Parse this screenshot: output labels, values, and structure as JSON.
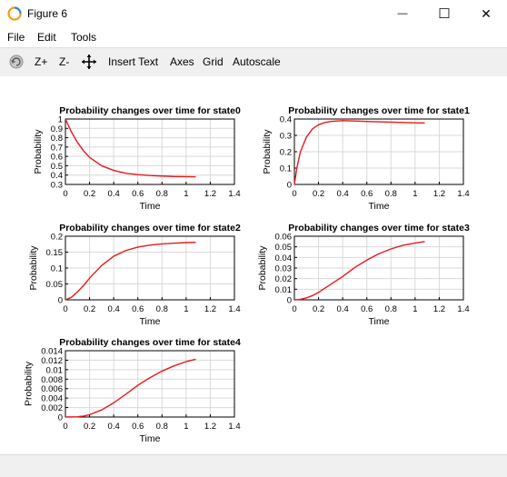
{
  "window": {
    "title": "Figure 6",
    "minimize_glyph": "—",
    "maximize_glyph": "☐",
    "close_glyph": "✕"
  },
  "menu": {
    "items": [
      "File",
      "Edit",
      "Tools"
    ]
  },
  "toolbar": {
    "zoom_in": "Z+",
    "zoom_out": "Z-",
    "insert_text": "Insert Text",
    "axes": "Axes",
    "grid": "Grid",
    "autoscale": "Autoscale"
  },
  "colors": {
    "line": "#e8191c",
    "grid": "#d9d9d9"
  },
  "chart_data": [
    {
      "type": "line",
      "title": "Probability changes over time for state0",
      "xlabel": "Time",
      "ylabel": "Probability",
      "xlim": [
        0,
        1.4
      ],
      "ylim": [
        0.3,
        1
      ],
      "xticks": [
        "0",
        "0.2",
        "0.4",
        "0.6",
        "0.8",
        "1",
        "1.2",
        "1.4"
      ],
      "yticks": [
        "0.3",
        "0.4",
        "0.5",
        "0.6",
        "0.7",
        "0.8",
        "0.9",
        "1"
      ],
      "x": [
        0,
        0.05,
        0.1,
        0.15,
        0.2,
        0.3,
        0.4,
        0.5,
        0.6,
        0.7,
        0.8,
        0.9,
        1.0,
        1.08
      ],
      "y": [
        1.0,
        0.86,
        0.75,
        0.66,
        0.59,
        0.5,
        0.45,
        0.42,
        0.405,
        0.395,
        0.39,
        0.385,
        0.383,
        0.382
      ]
    },
    {
      "type": "line",
      "title": "Probability changes over time for state1",
      "xlabel": "Time",
      "ylabel": "Probability",
      "xlim": [
        0,
        1.4
      ],
      "ylim": [
        0,
        0.4
      ],
      "xticks": [
        "0",
        "0.2",
        "0.4",
        "0.6",
        "0.8",
        "1",
        "1.2",
        "1.4"
      ],
      "yticks": [
        "0",
        "0.1",
        "0.2",
        "0.3",
        "0.4"
      ],
      "x": [
        0,
        0.02,
        0.05,
        0.1,
        0.15,
        0.2,
        0.25,
        0.3,
        0.4,
        0.5,
        0.6,
        0.7,
        0.8,
        0.9,
        1.0,
        1.08
      ],
      "y": [
        0,
        0.1,
        0.2,
        0.29,
        0.34,
        0.365,
        0.378,
        0.385,
        0.39,
        0.388,
        0.385,
        0.383,
        0.381,
        0.379,
        0.377,
        0.376
      ]
    },
    {
      "type": "line",
      "title": "Probability changes over time for state2",
      "xlabel": "Time",
      "ylabel": "Probability",
      "xlim": [
        0,
        1.4
      ],
      "ylim": [
        0,
        0.2
      ],
      "xticks": [
        "0",
        "0.2",
        "0.4",
        "0.6",
        "0.8",
        "1",
        "1.2",
        "1.4"
      ],
      "yticks": [
        "0",
        "0.05",
        "0.1",
        "0.15",
        "0.2"
      ],
      "x": [
        0,
        0.05,
        0.1,
        0.15,
        0.2,
        0.3,
        0.4,
        0.5,
        0.6,
        0.7,
        0.8,
        0.9,
        1.0,
        1.08
      ],
      "y": [
        0,
        0.008,
        0.025,
        0.045,
        0.068,
        0.108,
        0.137,
        0.155,
        0.166,
        0.172,
        0.176,
        0.178,
        0.18,
        0.181
      ]
    },
    {
      "type": "line",
      "title": "Probability changes over time for state3",
      "xlabel": "Time",
      "ylabel": "Probability",
      "xlim": [
        0,
        1.4
      ],
      "ylim": [
        0,
        0.06
      ],
      "xticks": [
        "0",
        "0.2",
        "0.4",
        "0.6",
        "0.8",
        "1",
        "1.2",
        "1.4"
      ],
      "yticks": [
        "0",
        "0.01",
        "0.02",
        "0.03",
        "0.04",
        "0.05",
        "0.06"
      ],
      "x": [
        0,
        0.05,
        0.1,
        0.15,
        0.2,
        0.3,
        0.4,
        0.5,
        0.6,
        0.7,
        0.8,
        0.9,
        1.0,
        1.08
      ],
      "y": [
        0,
        0.0005,
        0.0018,
        0.004,
        0.007,
        0.0145,
        0.022,
        0.0305,
        0.0375,
        0.0435,
        0.048,
        0.0515,
        0.0535,
        0.055
      ]
    },
    {
      "type": "line",
      "title": "Probability changes over time for state4",
      "xlabel": "Time",
      "ylabel": "Probability",
      "xlim": [
        0,
        1.4
      ],
      "ylim": [
        0,
        0.014
      ],
      "xticks": [
        "0",
        "0.2",
        "0.4",
        "0.6",
        "0.8",
        "1",
        "1.2",
        "1.4"
      ],
      "yticks": [
        "0",
        "0.002",
        "0.004",
        "0.006",
        "0.008",
        "0.01",
        "0.012",
        "0.014"
      ],
      "x": [
        0,
        0.1,
        0.15,
        0.2,
        0.3,
        0.4,
        0.5,
        0.6,
        0.7,
        0.8,
        0.9,
        1.0,
        1.08
      ],
      "y": [
        0,
        5e-05,
        0.0002,
        0.0005,
        0.0015,
        0.003,
        0.0048,
        0.0067,
        0.0083,
        0.0097,
        0.0108,
        0.0117,
        0.0122
      ]
    }
  ]
}
